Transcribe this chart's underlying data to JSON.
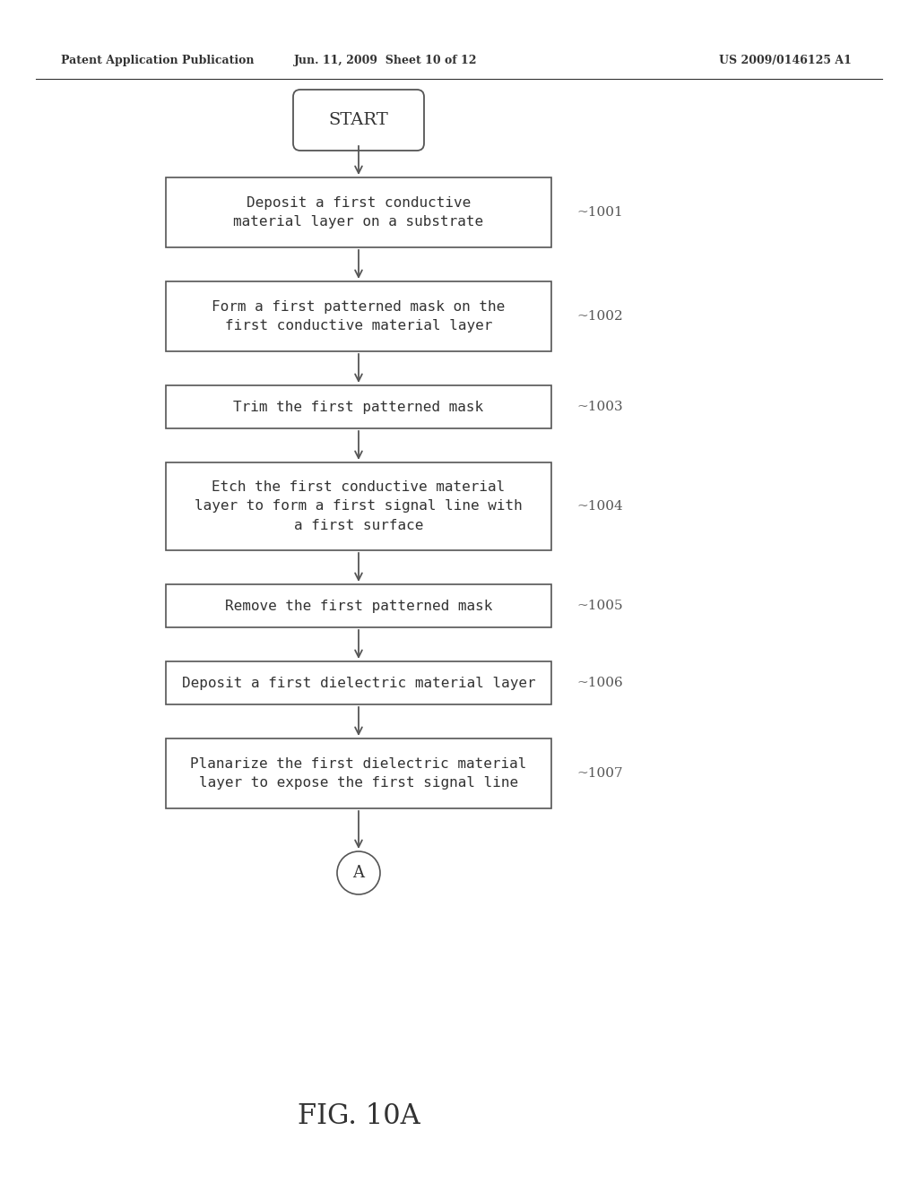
{
  "header_left": "Patent Application Publication",
  "header_center": "Jun. 11, 2009  Sheet 10 of 12",
  "header_right": "US 2009/0146125 A1",
  "figure_label": "FIG. 10A",
  "start_label": "START",
  "end_label": "A",
  "boxes": [
    {
      "id": "1001",
      "text": "Deposit a first conductive\nmaterial layer on a substrate",
      "lines": 2
    },
    {
      "id": "1002",
      "text": "Form a first patterned mask on the\nfirst conductive material layer",
      "lines": 2
    },
    {
      "id": "1003",
      "text": "Trim the first patterned mask",
      "lines": 1
    },
    {
      "id": "1004",
      "text": "Etch the first conductive material\nlayer to form a first signal line with\na first surface",
      "lines": 3
    },
    {
      "id": "1005",
      "text": "Remove the first patterned mask",
      "lines": 1
    },
    {
      "id": "1006",
      "text": "Deposit a first dielectric material layer",
      "lines": 1
    },
    {
      "id": "1007",
      "text": "Planarize the first dielectric material\nlayer to expose the first signal line",
      "lines": 2
    }
  ],
  "bg_color": "#ffffff",
  "box_edge_color": "#555555",
  "text_color": "#333333",
  "arrow_color": "#555555",
  "label_color": "#555555",
  "header_line_color": "#333333"
}
